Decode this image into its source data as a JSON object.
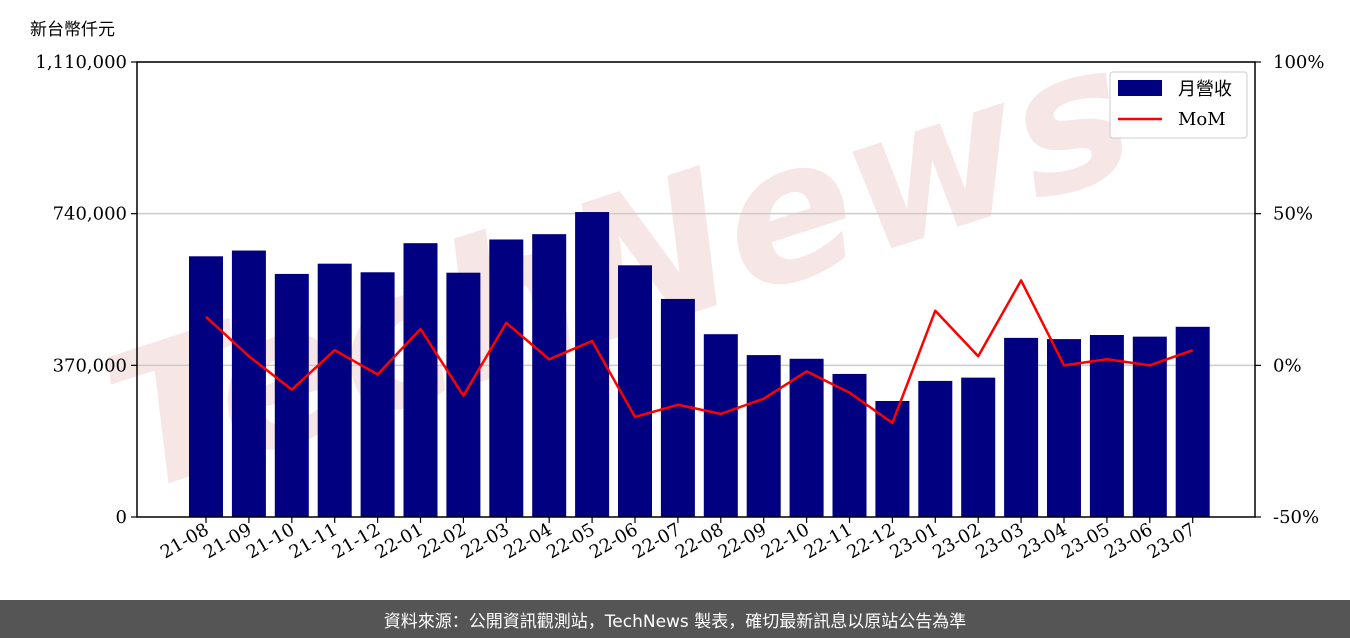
{
  "chart_data": {
    "type": "bar",
    "y_unit_label": "新台幣仟元",
    "categories": [
      "21-08",
      "21-09",
      "21-10",
      "21-11",
      "21-12",
      "22-01",
      "22-02",
      "22-03",
      "22-04",
      "22-05",
      "22-06",
      "22-07",
      "22-08",
      "22-09",
      "22-10",
      "22-11",
      "22-12",
      "23-01",
      "23-02",
      "23-03",
      "23-04",
      "23-05",
      "23-06",
      "23-07"
    ],
    "series": [
      {
        "name": "月營收",
        "type": "bar",
        "axis": "left",
        "color": "#000080",
        "values": [
          636000,
          650000,
          593000,
          618000,
          597000,
          668000,
          596000,
          677000,
          690000,
          744000,
          614000,
          532000,
          446000,
          395000,
          386000,
          349000,
          283000,
          332000,
          340000,
          437000,
          434000,
          444000,
          440000,
          464000
        ]
      },
      {
        "name": "MoM",
        "type": "line",
        "axis": "right",
        "color": "#ff0000",
        "values": [
          16,
          3,
          -8,
          5,
          -3,
          12,
          -10,
          14,
          2,
          8,
          -17,
          -13,
          -16,
          -11,
          -2,
          -9,
          -19,
          18,
          3,
          28,
          0,
          2,
          0,
          5
        ]
      }
    ],
    "left_axis": {
      "ylim": [
        0,
        1110000
      ],
      "ticks": [
        0,
        370000,
        740000,
        1110000
      ],
      "tick_labels": [
        "0",
        "370,000",
        "740,000",
        "1,110,000"
      ]
    },
    "right_axis": {
      "ylim": [
        -50,
        100
      ],
      "ticks": [
        -50,
        0,
        50,
        100
      ],
      "tick_labels": [
        "-50%",
        "0%",
        "50%",
        "100%"
      ]
    },
    "grid": "horizontal",
    "legend_position": "top-right",
    "watermark": "TechNews"
  },
  "footer": {
    "text": "資料來源：公開資訊觀測站，TechNews 製表，確切最新訊息以原站公告為準"
  }
}
